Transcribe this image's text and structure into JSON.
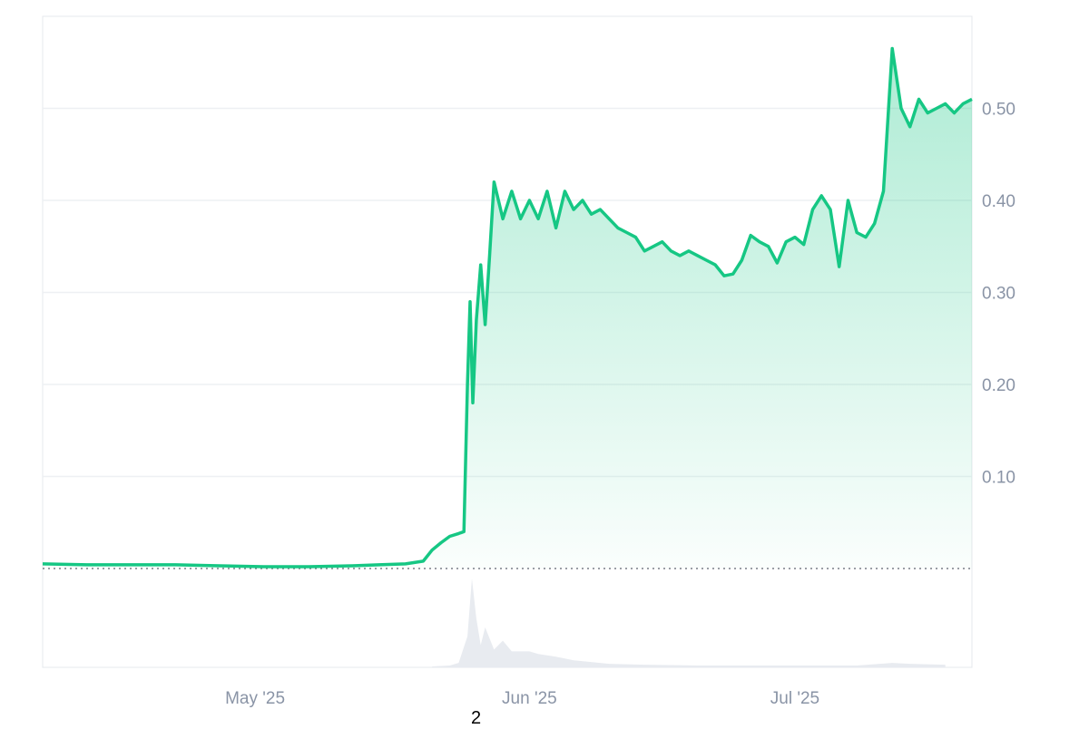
{
  "chart_data": {
    "type": "area",
    "title": "",
    "xlabel": "",
    "ylabel": "",
    "x_tick_labels": [
      "May '25",
      "Jun '25",
      "Jul '25"
    ],
    "y_tick_labels": [
      "0.10",
      "0.20",
      "0.30",
      "0.40",
      "0.50"
    ],
    "ylim": [
      0,
      0.6
    ],
    "xlim": [
      "2025-04-07",
      "2025-07-21"
    ],
    "grid": true,
    "baseline_value": 0.0,
    "colors": {
      "line_up": "#16c784",
      "line_down": "#ea3943",
      "area_fill": "#16c784",
      "grid": "#eef0f3",
      "tick_text": "#8a94a6",
      "volume": "#e8ebf0",
      "baseline": "#7a7f87"
    },
    "series": [
      {
        "values": [
          [
            "2025-04-07",
            0.005
          ],
          [
            "2025-04-12",
            0.004
          ],
          [
            "2025-04-17",
            0.004
          ],
          [
            "2025-04-22",
            0.004
          ],
          [
            "2025-04-27",
            0.003
          ],
          [
            "2025-05-02",
            0.002
          ],
          [
            "2025-05-07",
            0.002
          ],
          [
            "2025-05-12",
            0.003
          ],
          [
            "2025-05-15",
            0.004
          ],
          [
            "2025-05-18",
            0.005
          ],
          [
            "2025-05-20",
            0.008
          ],
          [
            "2025-05-21",
            0.02
          ],
          [
            "2025-05-22",
            0.028
          ],
          [
            "2025-05-23",
            0.035
          ],
          [
            "2025-05-24",
            0.038
          ],
          [
            "2025-05-24.6",
            0.04
          ],
          [
            "2025-05-25",
            0.2
          ],
          [
            "2025-05-25.3",
            0.29
          ],
          [
            "2025-05-25.6",
            0.18
          ],
          [
            "2025-05-26",
            0.27
          ],
          [
            "2025-05-26.5",
            0.33
          ],
          [
            "2025-05-27",
            0.265
          ],
          [
            "2025-05-27.5",
            0.34
          ],
          [
            "2025-05-28",
            0.42
          ],
          [
            "2025-05-29",
            0.38
          ],
          [
            "2025-05-30",
            0.41
          ],
          [
            "2025-05-31",
            0.38
          ],
          [
            "2025-06-01",
            0.4
          ],
          [
            "2025-06-02",
            0.38
          ],
          [
            "2025-06-03",
            0.41
          ],
          [
            "2025-06-04",
            0.37
          ],
          [
            "2025-06-05",
            0.41
          ],
          [
            "2025-06-06",
            0.39
          ],
          [
            "2025-06-07",
            0.4
          ],
          [
            "2025-06-08",
            0.385
          ],
          [
            "2025-06-09",
            0.39
          ],
          [
            "2025-06-10",
            0.38
          ],
          [
            "2025-06-11",
            0.37
          ],
          [
            "2025-06-12",
            0.365
          ],
          [
            "2025-06-13",
            0.36
          ],
          [
            "2025-06-14",
            0.345
          ],
          [
            "2025-06-15",
            0.35
          ],
          [
            "2025-06-16",
            0.355
          ],
          [
            "2025-06-17",
            0.345
          ],
          [
            "2025-06-18",
            0.34
          ],
          [
            "2025-06-19",
            0.345
          ],
          [
            "2025-06-20",
            0.34
          ],
          [
            "2025-06-21",
            0.335
          ],
          [
            "2025-06-22",
            0.33
          ],
          [
            "2025-06-23",
            0.318
          ],
          [
            "2025-06-24",
            0.32
          ],
          [
            "2025-06-25",
            0.335
          ],
          [
            "2025-06-26",
            0.362
          ],
          [
            "2025-06-27",
            0.355
          ],
          [
            "2025-06-28",
            0.35
          ],
          [
            "2025-06-29",
            0.332
          ],
          [
            "2025-06-30",
            0.355
          ],
          [
            "2025-07-01",
            0.36
          ],
          [
            "2025-07-02",
            0.352
          ],
          [
            "2025-07-03",
            0.39
          ],
          [
            "2025-07-04",
            0.405
          ],
          [
            "2025-07-05",
            0.39
          ],
          [
            "2025-07-06",
            0.328
          ],
          [
            "2025-07-07",
            0.4
          ],
          [
            "2025-07-08",
            0.365
          ],
          [
            "2025-07-09",
            0.36
          ],
          [
            "2025-07-10",
            0.375
          ],
          [
            "2025-07-11",
            0.41
          ],
          [
            "2025-07-12",
            0.565
          ],
          [
            "2025-07-13",
            0.5
          ],
          [
            "2025-07-14",
            0.48
          ],
          [
            "2025-07-15",
            0.51
          ],
          [
            "2025-07-16",
            0.495
          ],
          [
            "2025-07-17",
            0.5
          ],
          [
            "2025-07-18",
            0.505
          ],
          [
            "2025-07-19",
            0.495
          ],
          [
            "2025-07-20",
            0.505
          ],
          [
            "2025-07-21",
            0.51
          ]
        ]
      }
    ],
    "volume": [
      [
        "2025-05-21",
        0.01
      ],
      [
        "2025-05-23",
        0.02
      ],
      [
        "2025-05-24",
        0.05
      ],
      [
        "2025-05-25",
        0.35
      ],
      [
        "2025-05-25.5",
        1.0
      ],
      [
        "2025-05-26",
        0.55
      ],
      [
        "2025-05-26.5",
        0.25
      ],
      [
        "2025-05-27",
        0.45
      ],
      [
        "2025-05-28",
        0.2
      ],
      [
        "2025-05-29",
        0.3
      ],
      [
        "2025-05-30",
        0.18
      ],
      [
        "2025-06-01",
        0.18
      ],
      [
        "2025-06-02",
        0.15
      ],
      [
        "2025-06-04",
        0.12
      ],
      [
        "2025-06-06",
        0.08
      ],
      [
        "2025-06-10",
        0.04
      ],
      [
        "2025-06-14",
        0.03
      ],
      [
        "2025-06-20",
        0.02
      ],
      [
        "2025-06-30",
        0.02
      ],
      [
        "2025-07-08",
        0.02
      ],
      [
        "2025-07-12",
        0.05
      ],
      [
        "2025-07-14",
        0.04
      ],
      [
        "2025-07-18",
        0.03
      ]
    ]
  },
  "footer_text": "2"
}
